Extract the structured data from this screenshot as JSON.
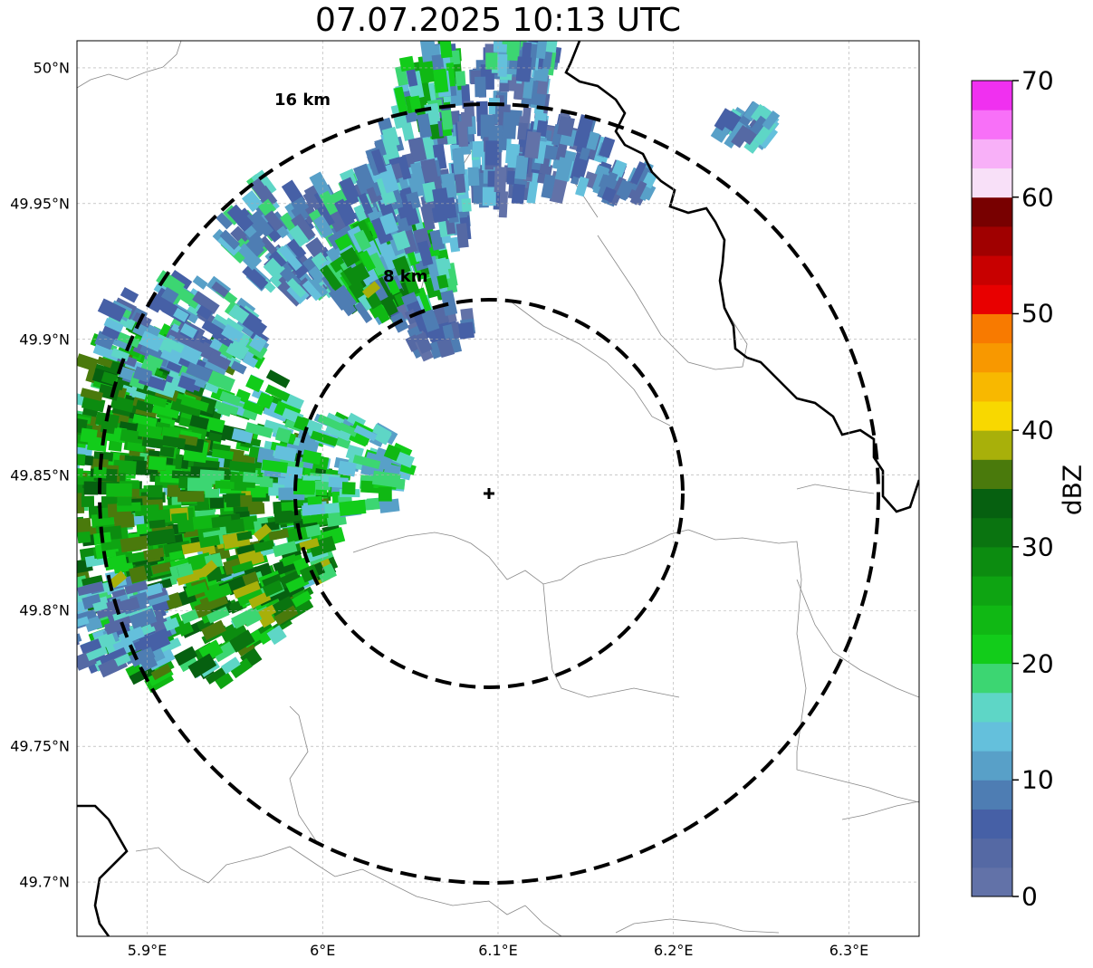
{
  "title": "07.07.2025 10:13 UTC",
  "map": {
    "lat_ticks": [
      {
        "value": 50.0,
        "label": "50°N"
      },
      {
        "value": 49.95,
        "label": "49.95°N"
      },
      {
        "value": 49.9,
        "label": "49.9°N"
      },
      {
        "value": 49.85,
        "label": "49.85°N"
      },
      {
        "value": 49.8,
        "label": "49.8°N"
      },
      {
        "value": 49.75,
        "label": "49.75°N"
      },
      {
        "value": 49.7,
        "label": "49.7°N"
      }
    ],
    "lon_ticks": [
      {
        "value": 5.9,
        "label": "5.9°E"
      },
      {
        "value": 6.0,
        "label": "6°E"
      },
      {
        "value": 6.1,
        "label": "6.1°E"
      },
      {
        "value": 6.2,
        "label": "6.2°E"
      },
      {
        "value": 6.3,
        "label": "6.3°E"
      }
    ],
    "lon_range": [
      5.86,
      6.34
    ],
    "lat_range": [
      49.68,
      50.01
    ],
    "radar_site": {
      "lon": 6.093,
      "lat": 49.843
    },
    "range_rings": [
      {
        "radius_km": 8,
        "label": "8 km"
      },
      {
        "radius_km": 16,
        "label": "16 km"
      }
    ],
    "grid": true
  },
  "colorbar": {
    "label": "dBZ",
    "min": 0,
    "max": 70,
    "ticks": [
      "0",
      "10",
      "20",
      "30",
      "40",
      "50",
      "60",
      "70"
    ],
    "colors": [
      "#6272a8",
      "#5569a4",
      "#4660a6",
      "#4e7db3",
      "#58a0c8",
      "#64c0dc",
      "#5ed6c6",
      "#3cd672",
      "#12cc1a",
      "#10b814",
      "#0ea412",
      "#0c8c10",
      "#0a7410",
      "#066010",
      "#4a7a0c",
      "#a8b00a",
      "#f8d800",
      "#f8b800",
      "#f89800",
      "#f87a00",
      "#e80000",
      "#c80000",
      "#a00000",
      "#780000",
      "#f8e0f8",
      "#f8b0f8",
      "#f870f8",
      "#f030f0"
    ]
  }
}
